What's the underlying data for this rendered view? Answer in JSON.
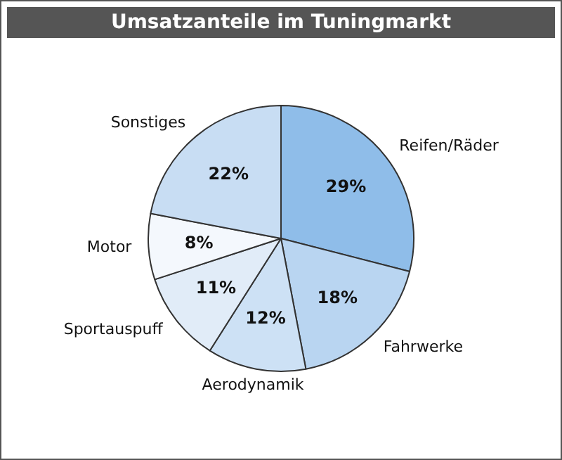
{
  "chart_data": {
    "type": "pie",
    "title": "Umsatzanteile im Tuningmarkt",
    "categories": [
      "Reifen/Räder",
      "Fahrwerke",
      "Aerodynamik",
      "Sportauspuff",
      "Motor",
      "Sonstiges"
    ],
    "values": [
      29,
      18,
      12,
      11,
      8,
      22
    ],
    "value_labels": [
      "29%",
      "18%",
      "12%",
      "11%",
      "8%",
      "22%"
    ],
    "colors": [
      "#8fbde9",
      "#b9d5f1",
      "#cde1f5",
      "#e1ecf8",
      "#f4f8fd",
      "#c8ddf3"
    ],
    "legend": false
  }
}
